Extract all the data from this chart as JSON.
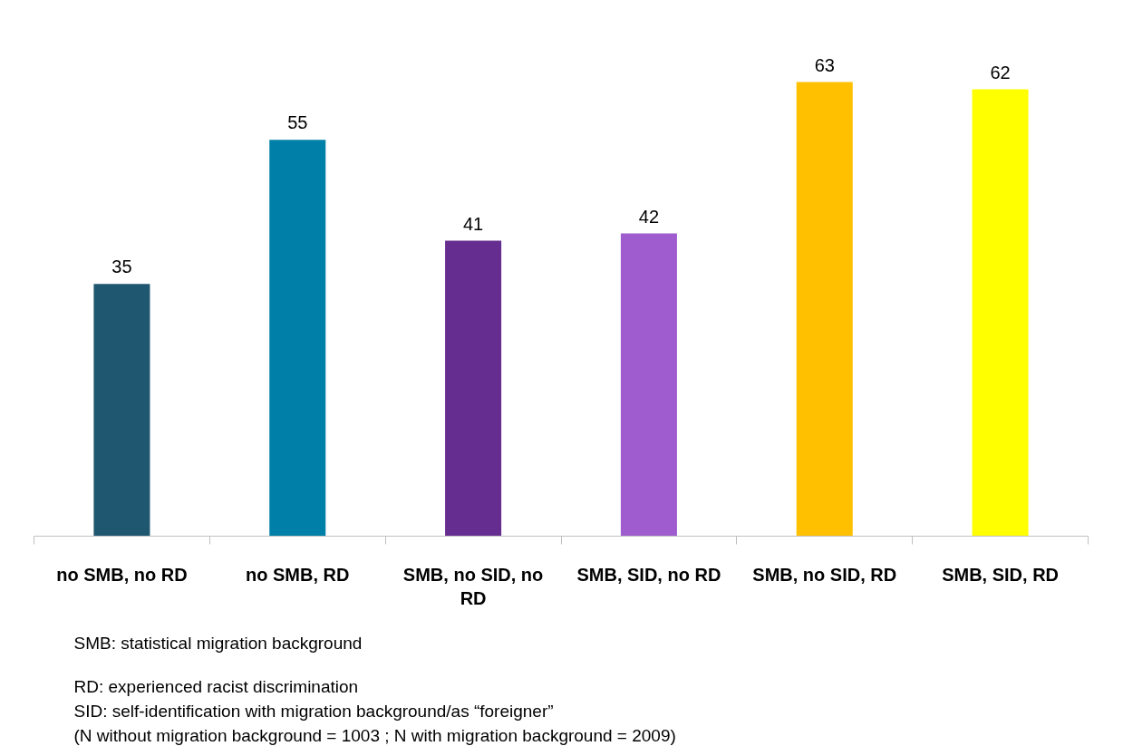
{
  "chart_data": {
    "type": "bar",
    "categories": [
      "no SMB, no RD",
      "no SMB, RD",
      "SMB, no SID, no RD",
      "SMB, SID, no RD",
      "SMB, no SID, RD",
      "SMB, SID, RD"
    ],
    "values": [
      35,
      55,
      41,
      42,
      63,
      62
    ],
    "colors": [
      "#1f5670",
      "#0080a8",
      "#662d91",
      "#9e5ccf",
      "#ffc000",
      "#ffff00"
    ],
    "data_labels": true,
    "grid": false,
    "annotations": [
      "SMB: statistical migration background",
      "RD: experienced racist discrimination",
      "SID: self-identification with migration background/as “foreigner”",
      "(N without migration background = 1003 ; N with migration background = 2009)"
    ]
  }
}
